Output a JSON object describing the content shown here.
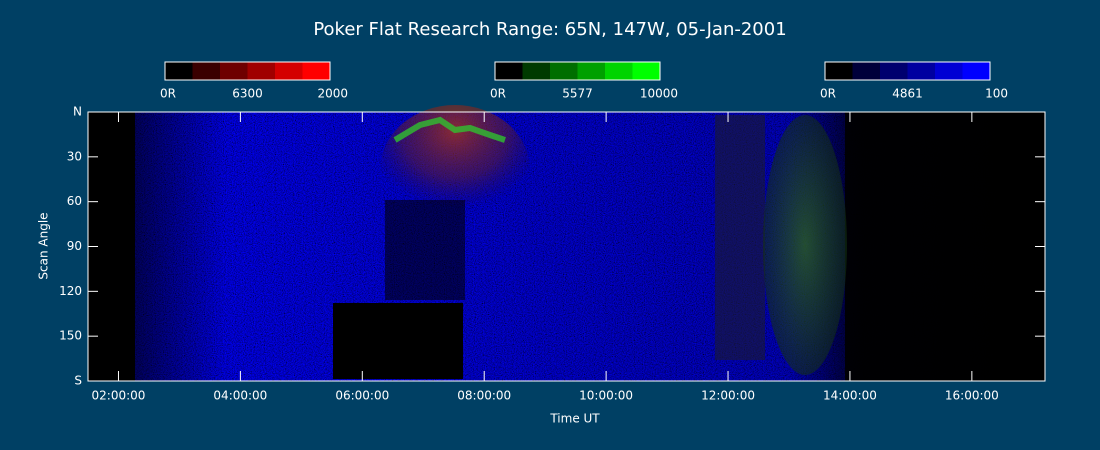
{
  "chart_data": {
    "type": "keogram",
    "title": "Poker Flat Research Range: 65N, 147W, 05-Jan-2001",
    "xlabel": "Time UT",
    "ylabel": "Scan Angle",
    "xlim": [
      1.5,
      17.2
    ],
    "xticks": [
      {
        "value": 2,
        "label": "02:00:00"
      },
      {
        "value": 4,
        "label": "04:00:00"
      },
      {
        "value": 6,
        "label": "06:00:00"
      },
      {
        "value": 8,
        "label": "08:00:00"
      },
      {
        "value": 10,
        "label": "10:00:00"
      },
      {
        "value": 12,
        "label": "12:00:00"
      },
      {
        "value": 14,
        "label": "14:00:00"
      },
      {
        "value": 16,
        "label": "16:00:00"
      }
    ],
    "ylim": [
      0,
      180
    ],
    "yticks": [
      {
        "value": 0,
        "label": "N"
      },
      30,
      60,
      90,
      120,
      150,
      {
        "value": 180,
        "label": "S"
      }
    ],
    "colorbars": [
      {
        "min_label": "0R",
        "line": "6300",
        "max": 2000,
        "colors": [
          "#000000",
          "#3a0000",
          "#6e0000",
          "#a00000",
          "#d40000",
          "#ff0000"
        ]
      },
      {
        "min_label": "0R",
        "line": "5577",
        "max": 10000,
        "colors": [
          "#000000",
          "#003a00",
          "#006e00",
          "#00a000",
          "#00d400",
          "#00ff00"
        ]
      },
      {
        "min_label": "0R",
        "line": "4861",
        "max": 100,
        "colors": [
          "#000000",
          "#00003a",
          "#00006e",
          "#0000a0",
          "#0000d4",
          "#0000ff"
        ]
      }
    ]
  }
}
